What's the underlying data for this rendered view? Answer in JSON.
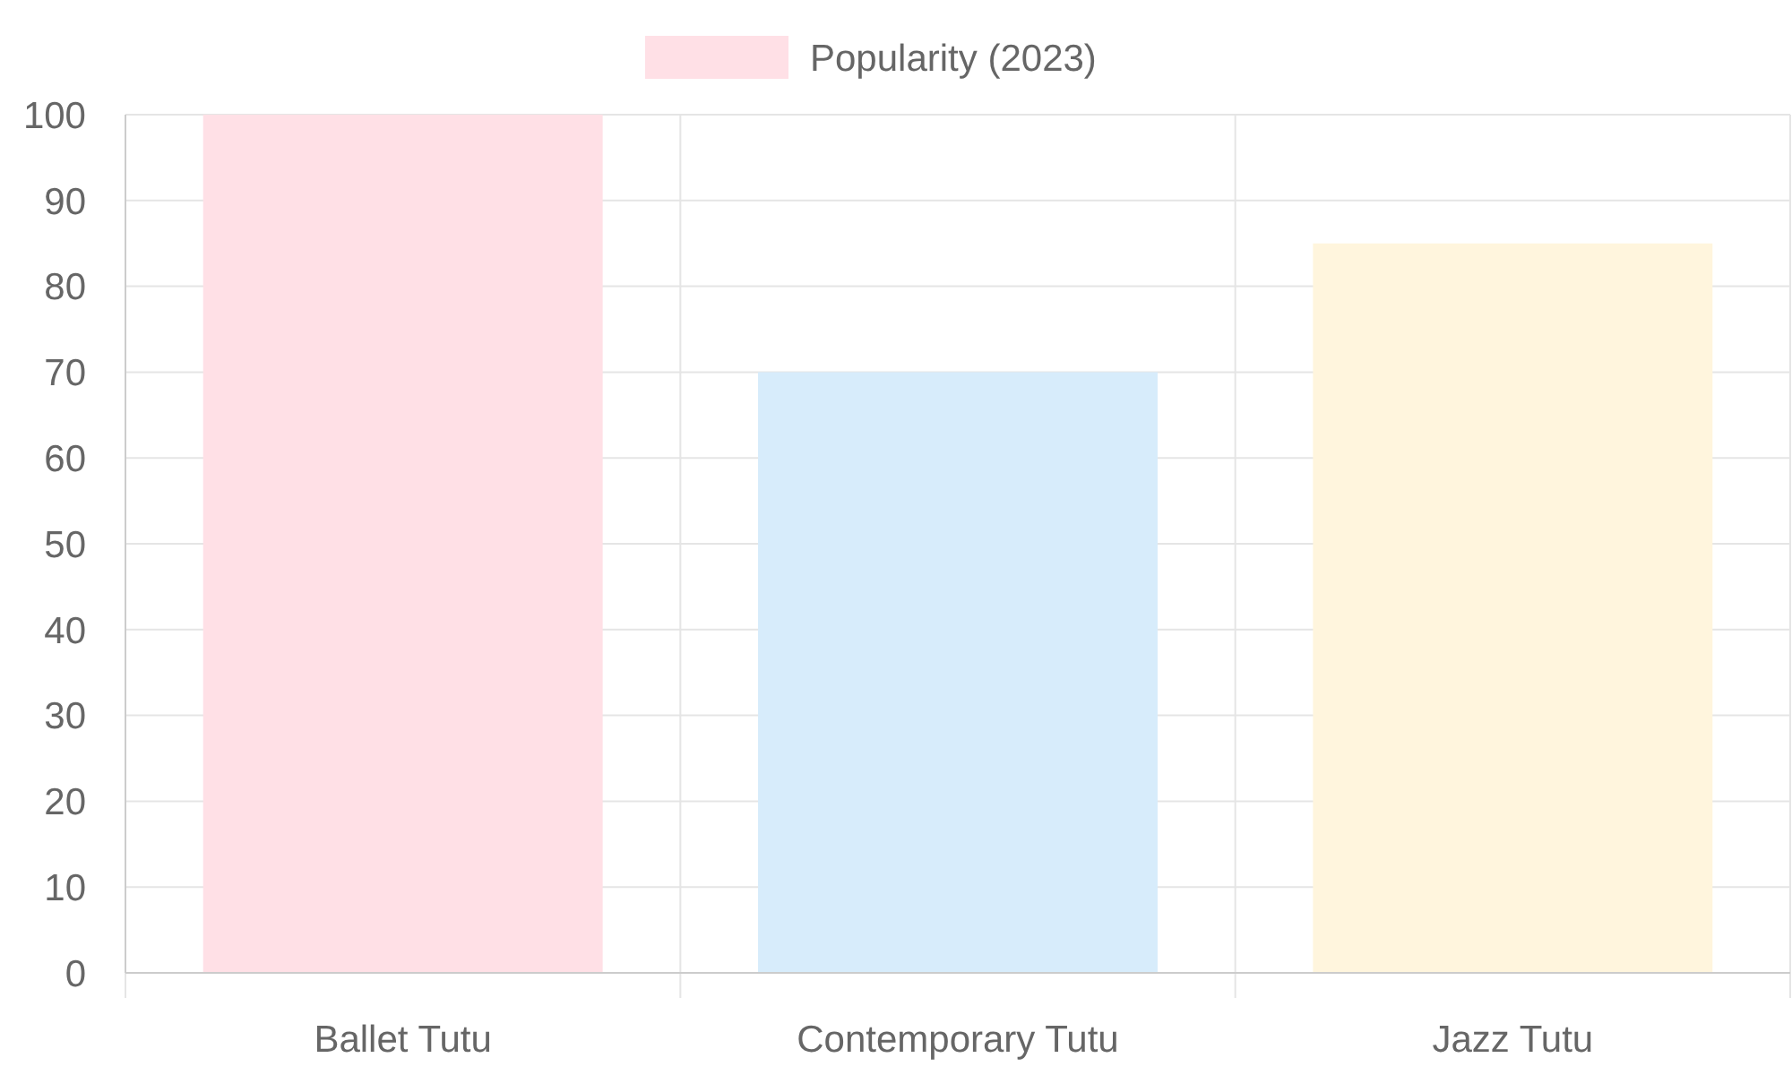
{
  "chart_data": {
    "type": "bar",
    "categories": [
      "Ballet Tutu",
      "Contemporary Tutu",
      "Jazz Tutu"
    ],
    "series": [
      {
        "name": "Popularity (2023)",
        "color": "#ffe0e6",
        "colors": [
          "#ffe0e6",
          "#d7ecfb",
          "#fff5dd"
        ],
        "values": [
          100,
          70,
          85
        ]
      }
    ],
    "ylim": [
      0,
      100
    ],
    "yticks": [
      0,
      10,
      20,
      30,
      40,
      50,
      60,
      70,
      80,
      90,
      100
    ],
    "grid": true,
    "legend": "top"
  }
}
